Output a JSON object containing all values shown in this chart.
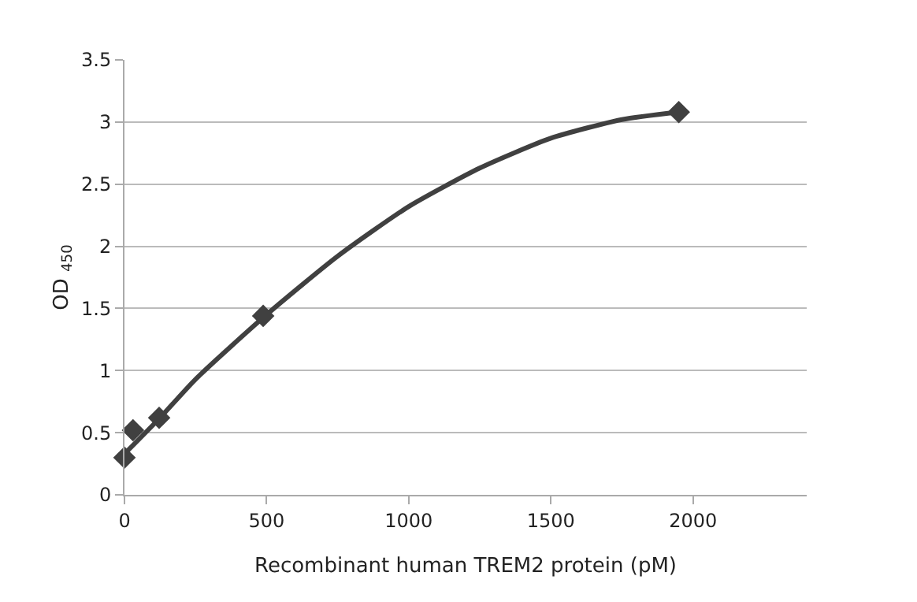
{
  "chart_data": {
    "type": "scatter",
    "xlabel": "Recombinant human TREM2 protein (pM)",
    "ylabel": "OD $_{450}$",
    "xlim": [
      0,
      2400
    ],
    "xticks": [
      0,
      500,
      1000,
      1500,
      2000
    ],
    "ylim": [
      0,
      3.5
    ],
    "yticks": [
      0,
      0.5,
      1,
      1.5,
      2,
      2.5,
      3,
      3.5
    ],
    "grid": "y",
    "legend": false,
    "marker": "diamond",
    "series": [
      {
        "color": "#404040",
        "x": [
          0,
          30,
          122,
          488,
          1950
        ],
        "values": [
          0.3,
          0.52,
          0.62,
          1.44,
          3.08
        ]
      },
      {
        "type": "line",
        "color": "#404040",
        "line_style": "solid",
        "marker": "none",
        "x": [
          0,
          125,
          250,
          500,
          750,
          1000,
          1250,
          1500,
          1750,
          1950
        ],
        "values": [
          0.33,
          0.62,
          0.93,
          1.45,
          1.92,
          2.32,
          2.63,
          2.87,
          3.02,
          3.08
        ]
      }
    ]
  }
}
